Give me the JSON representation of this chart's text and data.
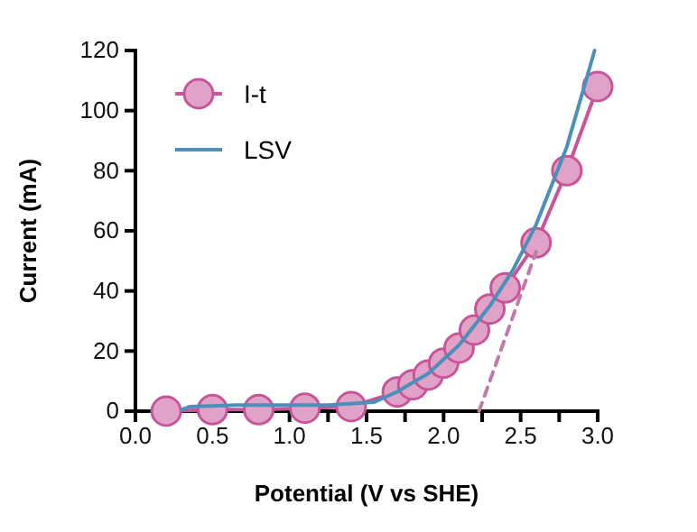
{
  "chart_data": {
    "type": "line",
    "xlabel": "Potential (V vs SHE)",
    "ylabel": "Current (mA)",
    "xlim": [
      0,
      3
    ],
    "ylim": [
      0,
      120
    ],
    "xticks": [
      {
        "value": 0,
        "label": "0.0"
      },
      {
        "value": 0.25,
        "label": null
      },
      {
        "value": 0.5,
        "label": "0.5"
      },
      {
        "value": 0.75,
        "label": null
      },
      {
        "value": 1,
        "label": "1.0"
      },
      {
        "value": 1.25,
        "label": null
      },
      {
        "value": 1.5,
        "label": "1.5"
      },
      {
        "value": 1.75,
        "label": null
      },
      {
        "value": 2,
        "label": "2.0"
      },
      {
        "value": 2.25,
        "label": null
      },
      {
        "value": 2.5,
        "label": "2.5"
      },
      {
        "value": 2.75,
        "label": null
      },
      {
        "value": 3,
        "label": "3.0"
      }
    ],
    "yticks": [
      0,
      20,
      40,
      60,
      80,
      100,
      120
    ],
    "legend": "top left",
    "grid": false,
    "series": [
      {
        "name": "I-t",
        "color": "#c8559a",
        "marker": "circle",
        "line_style": "solid",
        "x": [
          0.2,
          0.5,
          0.8,
          1.1,
          1.4,
          1.7,
          1.8,
          1.9,
          2.0,
          2.1,
          2.2,
          2.3,
          2.4,
          2.6,
          2.8,
          3.0
        ],
        "values": [
          0,
          0.5,
          0.5,
          1,
          1.5,
          6.4,
          8.8,
          12,
          16,
          21,
          27,
          34,
          41,
          56,
          80,
          108
        ]
      },
      {
        "name": "LSV",
        "color": "#4a90b8",
        "marker": "none",
        "line_style": "solid",
        "x": [
          0.3,
          0.35,
          0.65,
          0.95,
          1.25,
          1.55,
          1.7,
          1.9,
          2.1,
          2.3,
          2.45,
          2.6,
          2.8,
          2.98
        ],
        "values": [
          0.5,
          1.5,
          2,
          2,
          2,
          3,
          6.5,
          12.5,
          22,
          35,
          47,
          62,
          88,
          120
        ]
      },
      {
        "color": "#c07aa8",
        "marker": "none",
        "line_style": "dashed",
        "x": [
          2.23,
          2.6
        ],
        "values": [
          0,
          53
        ]
      }
    ]
  }
}
